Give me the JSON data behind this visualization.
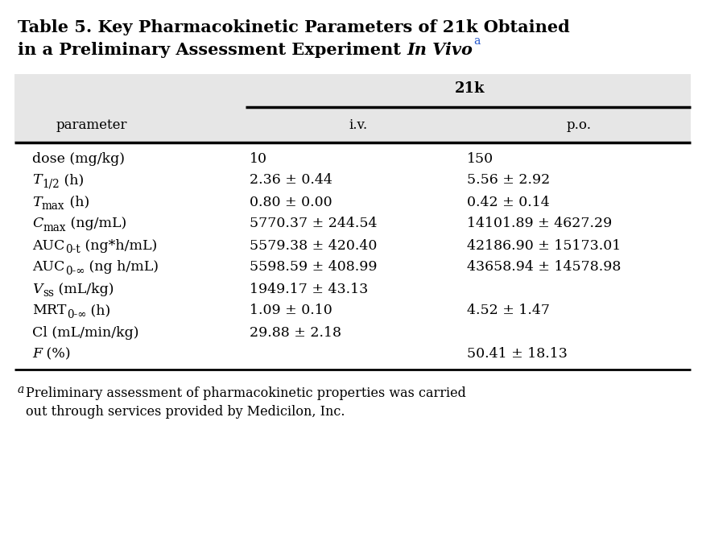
{
  "title_line1": "Table 5. Key Pharmacokinetic Parameters of 21k Obtained",
  "title_line2_prefix": "in a Preliminary Assessment Experiment ",
  "title_italic": "In Vivo",
  "title_superscript": "a",
  "header_group": "21k",
  "col_headers": [
    "parameter",
    "i.v.",
    "p.o."
  ],
  "rows": [
    [
      "dose (mg/kg)",
      "10",
      "150"
    ],
    [
      "T_{1/2} (h)",
      "2.36 ± 0.44",
      "5.56 ± 2.92"
    ],
    [
      "T_{max} (h)",
      "0.80 ± 0.00",
      "0.42 ± 0.14"
    ],
    [
      "C_{max} (ng/mL)",
      "5770.37 ± 244.54",
      "14101.89 ± 4627.29"
    ],
    [
      "AUC_{0-t} (ng*h/mL)",
      "5579.38 ± 420.40",
      "42186.90 ± 15173.01"
    ],
    [
      "AUC_{0-∞} (ng h/mL)",
      "5598.59 ± 408.99",
      "43658.94 ± 14578.98"
    ],
    [
      "V_{ss} (mL/kg)",
      "1949.17 ± 43.13",
      ""
    ],
    [
      "MRT_{0-∞} (h)",
      "1.09 ± 0.10",
      "4.52 ± 1.47"
    ],
    [
      "Cl (mL/min/kg)",
      "29.88 ± 2.18",
      ""
    ],
    [
      "F (%)",
      "",
      "50.41 ± 18.13"
    ]
  ],
  "footnote_italic_a": "a",
  "footnote_text": "Preliminary assessment of pharmacokinetic properties was carried\nout through services provided by Medicilon, Inc.",
  "bg_color_header": "#e6e6e6",
  "text_color": "#000000",
  "title_color": "#000000",
  "superscript_color": "#2255cc",
  "fig_width": 8.72,
  "fig_height": 6.67,
  "dpi": 100
}
